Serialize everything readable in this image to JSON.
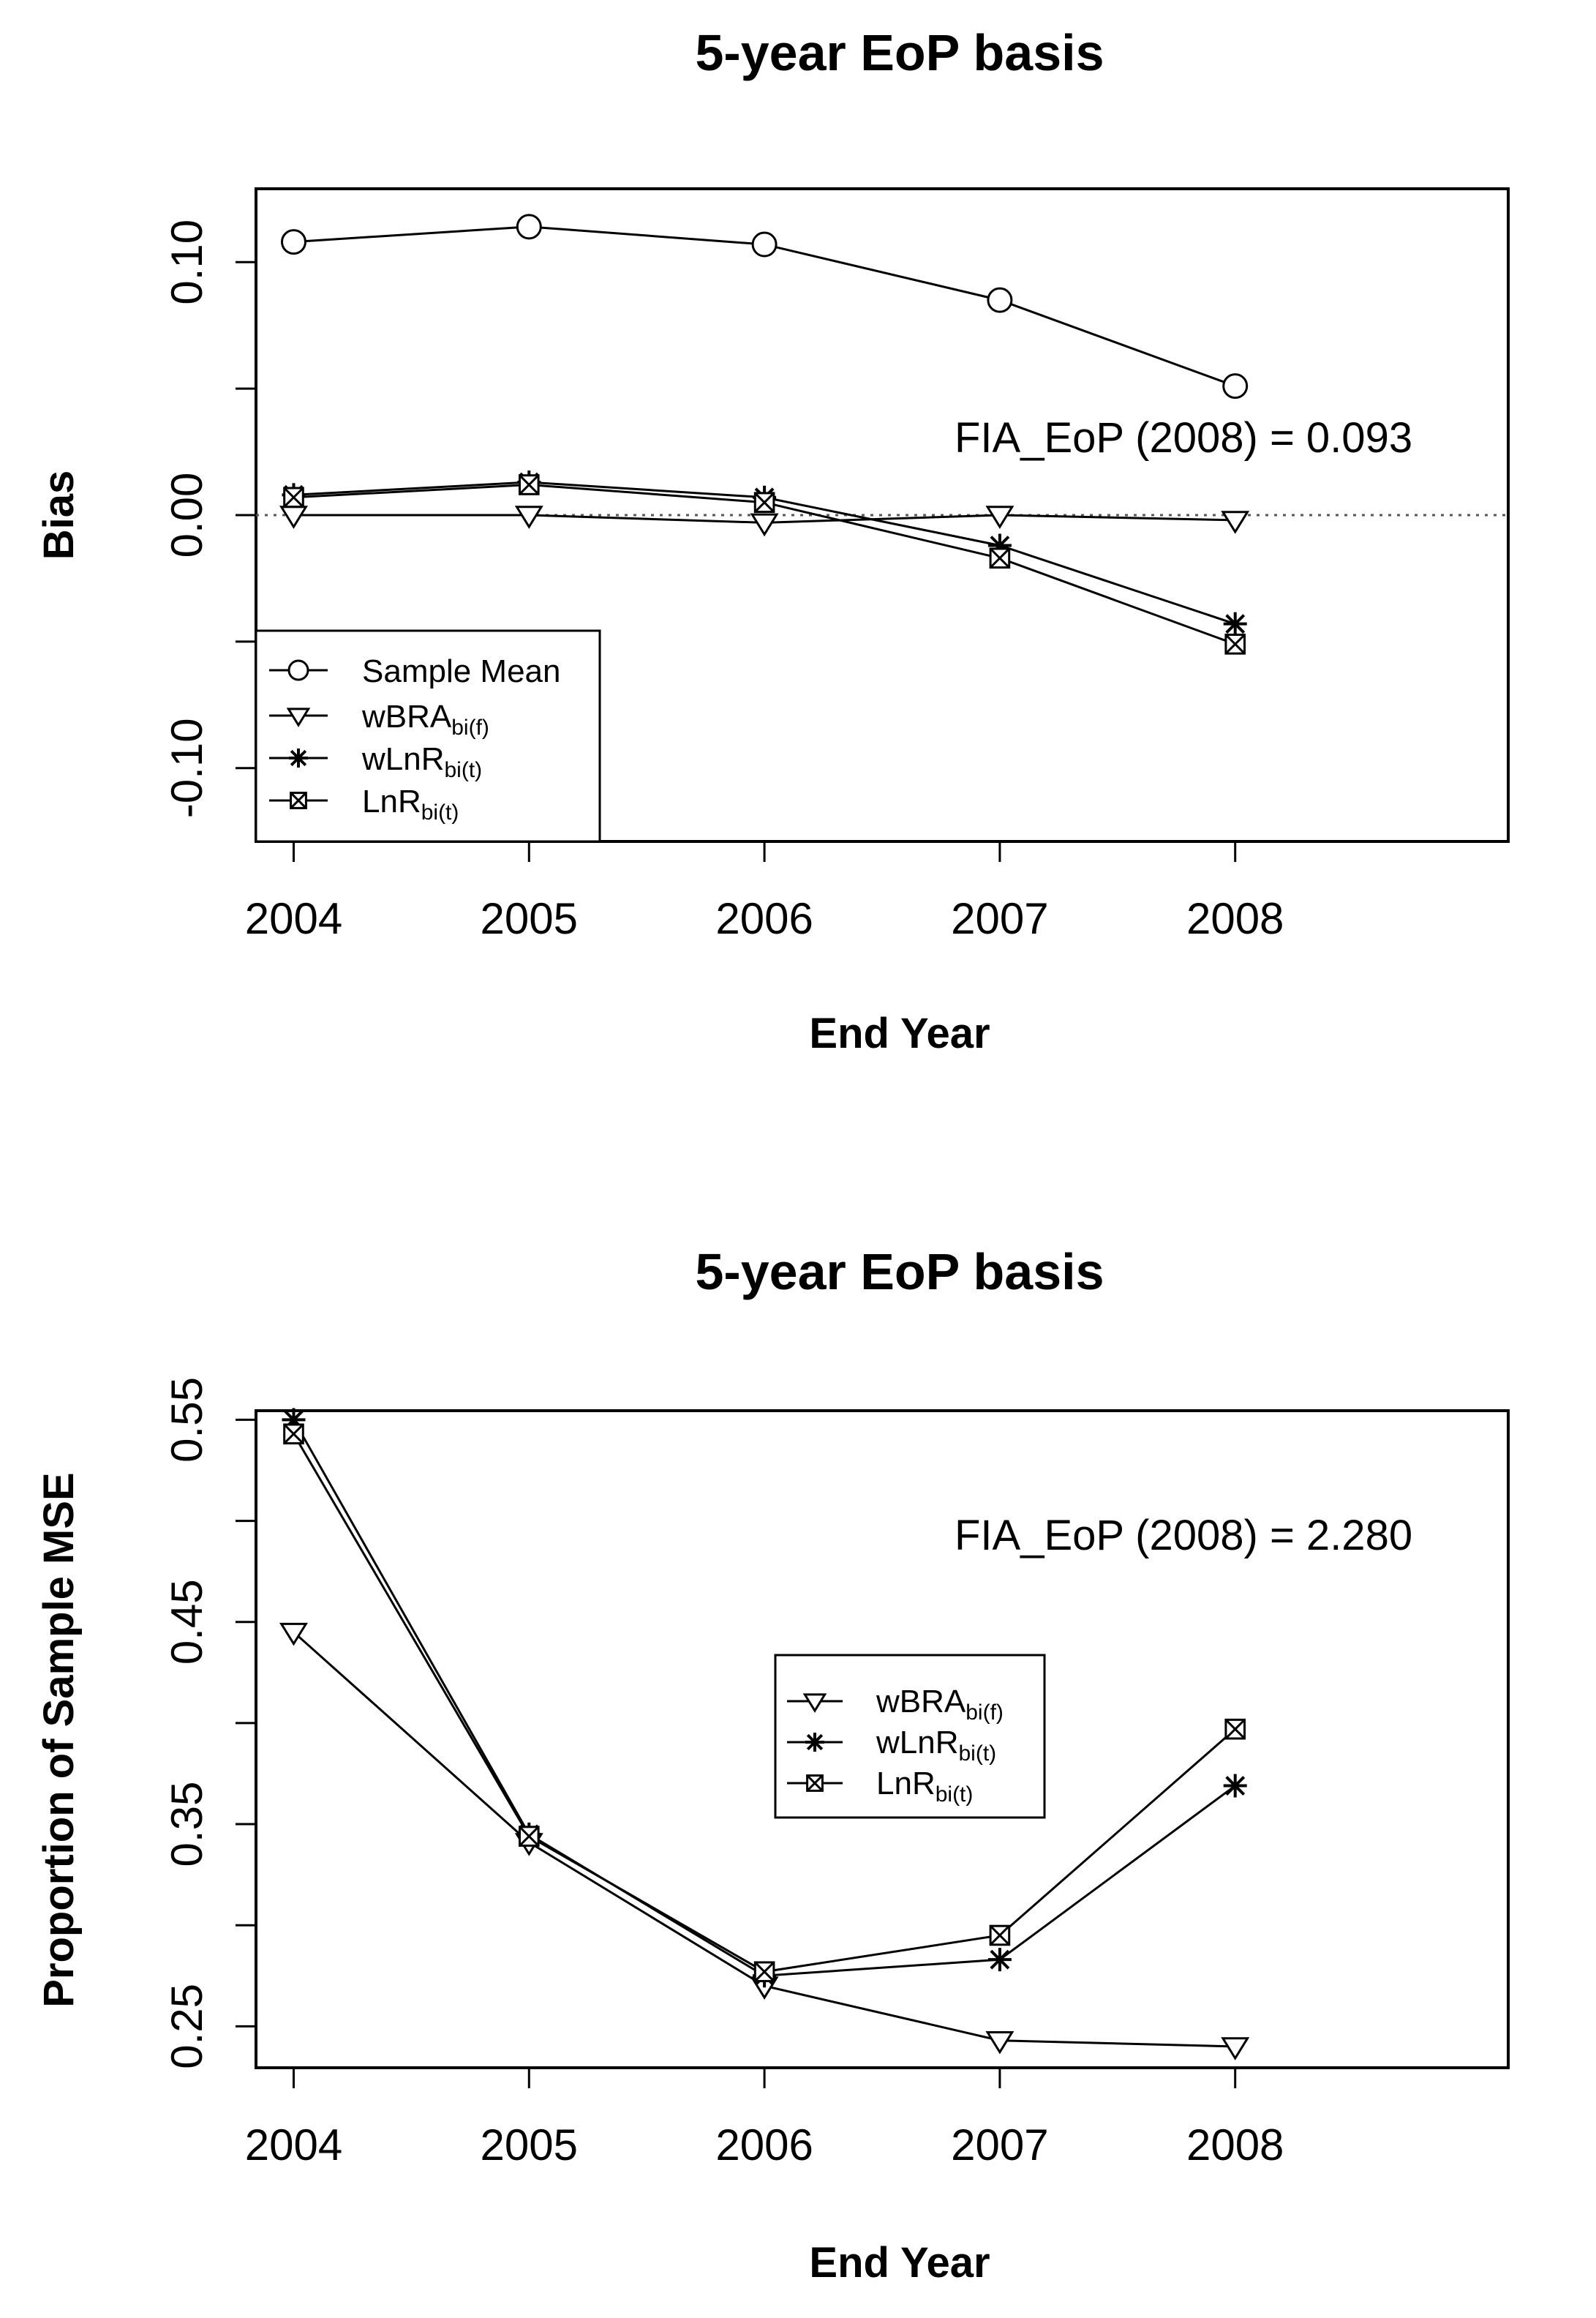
{
  "chart_data": [
    {
      "type": "line",
      "title": "5-year EoP basis",
      "xlabel": "End Year",
      "ylabel": "Bias",
      "categories": [
        "2004",
        "2005",
        "2006",
        "2007",
        "2008"
      ],
      "xlim": [
        2003.84,
        2009.16
      ],
      "ylim": [
        -0.129,
        0.129
      ],
      "yticks": [
        {
          "value": 0.1,
          "label": "0.10"
        },
        {
          "value": 0.05,
          "label": ""
        },
        {
          "value": 0.0,
          "label": "0.00"
        },
        {
          "value": -0.05,
          "label": ""
        },
        {
          "value": -0.1,
          "label": "-0.10"
        }
      ],
      "reference_line": 0.0,
      "annotation": "FIA_EoP (2008) = 0.093",
      "legend_position": "bottom-left",
      "series": [
        {
          "name": "Sample Mean",
          "legend_main": "Sample Mean",
          "legend_sub": "",
          "marker": "circle",
          "values": [
            0.108,
            0.114,
            0.107,
            0.085,
            0.051
          ]
        },
        {
          "name": "wBRA bi(f)",
          "legend_main": "wBRA",
          "legend_sub": "bi(f)",
          "marker": "triangle",
          "values": [
            0.0,
            0.0,
            -0.003,
            0.0,
            -0.002
          ]
        },
        {
          "name": "wLnR bi(t)",
          "legend_main": "wLnR",
          "legend_sub": "bi(t)",
          "marker": "star",
          "values": [
            0.008,
            0.013,
            0.007,
            -0.012,
            -0.043
          ]
        },
        {
          "name": "LnR bi(t)",
          "legend_main": "LnR",
          "legend_sub": "bi(t)",
          "marker": "boxx",
          "values": [
            0.007,
            0.012,
            0.005,
            -0.017,
            -0.051
          ]
        }
      ]
    },
    {
      "type": "line",
      "title": "5-year EoP basis",
      "xlabel": "End Year",
      "ylabel": "Proportion of Sample MSE",
      "categories": [
        "2004",
        "2005",
        "2006",
        "2007",
        "2008"
      ],
      "xlim": [
        2003.84,
        2009.16
      ],
      "ylim": [
        0.2295,
        0.5545
      ],
      "yticks": [
        {
          "value": 0.55,
          "label": "0.55"
        },
        {
          "value": 0.5,
          "label": ""
        },
        {
          "value": 0.45,
          "label": "0.45"
        },
        {
          "value": 0.4,
          "label": ""
        },
        {
          "value": 0.35,
          "label": "0.35"
        },
        {
          "value": 0.3,
          "label": ""
        },
        {
          "value": 0.25,
          "label": "0.25"
        }
      ],
      "annotation": "FIA_EoP (2008) = 2.280",
      "legend_position": "center",
      "series": [
        {
          "name": "wBRA bi(f)",
          "legend_main": "wBRA",
          "legend_sub": "bi(f)",
          "marker": "triangle",
          "values": [
            0.445,
            0.341,
            0.27,
            0.243,
            0.24
          ]
        },
        {
          "name": "wLnR bi(t)",
          "legend_main": "wLnR",
          "legend_sub": "bi(t)",
          "marker": "star",
          "values": [
            0.55,
            0.345,
            0.275,
            0.283,
            0.369
          ]
        },
        {
          "name": "LnR bi(t)",
          "legend_main": "LnR",
          "legend_sub": "bi(t)",
          "marker": "boxx",
          "values": [
            0.543,
            0.344,
            0.277,
            0.295,
            0.397
          ]
        }
      ]
    }
  ]
}
